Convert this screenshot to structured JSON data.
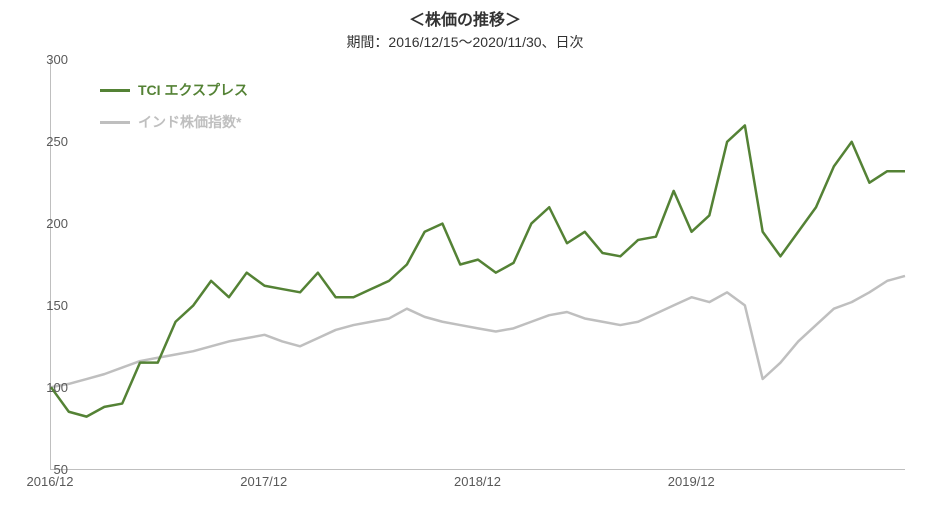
{
  "title": "＜株価の推移＞",
  "subtitle": "期間：2016/12/15～2020/11/30、日次",
  "chart": {
    "type": "line",
    "background_color": "#ffffff",
    "axis_color": "#bfbfbf",
    "label_color": "#595959",
    "title_fontsize": 16,
    "subtitle_fontsize": 14,
    "label_fontsize": 13,
    "legend_fontsize": 14,
    "xlim": [
      0,
      48
    ],
    "ylim": [
      50,
      300
    ],
    "ytick_step": 50,
    "yticks": [
      50,
      100,
      150,
      200,
      250,
      300
    ],
    "xticks": [
      {
        "pos": 0,
        "label": "2016/12"
      },
      {
        "pos": 12,
        "label": "2017/12"
      },
      {
        "pos": 24,
        "label": "2018/12"
      },
      {
        "pos": 36,
        "label": "2019/12"
      }
    ],
    "series": [
      {
        "name": "TCI エクスプレス",
        "color": "#548235",
        "line_width": 2.5,
        "data": [
          100,
          85,
          82,
          88,
          90,
          115,
          115,
          140,
          150,
          165,
          155,
          170,
          162,
          160,
          158,
          170,
          155,
          155,
          160,
          165,
          175,
          195,
          200,
          175,
          178,
          170,
          176,
          200,
          210,
          188,
          195,
          182,
          180,
          190,
          192,
          220,
          195,
          205,
          250,
          260,
          195,
          180,
          195,
          210,
          235,
          250,
          225,
          232,
          232
        ]
      },
      {
        "name": "インド株価指数*",
        "color": "#bfbfbf",
        "line_width": 2.5,
        "data": [
          100,
          102,
          105,
          108,
          112,
          116,
          118,
          120,
          122,
          125,
          128,
          130,
          132,
          128,
          125,
          130,
          135,
          138,
          140,
          142,
          148,
          143,
          140,
          138,
          136,
          134,
          136,
          140,
          144,
          146,
          142,
          140,
          138,
          140,
          145,
          150,
          155,
          152,
          158,
          150,
          105,
          115,
          128,
          138,
          148,
          152,
          158,
          165,
          168
        ]
      }
    ]
  }
}
